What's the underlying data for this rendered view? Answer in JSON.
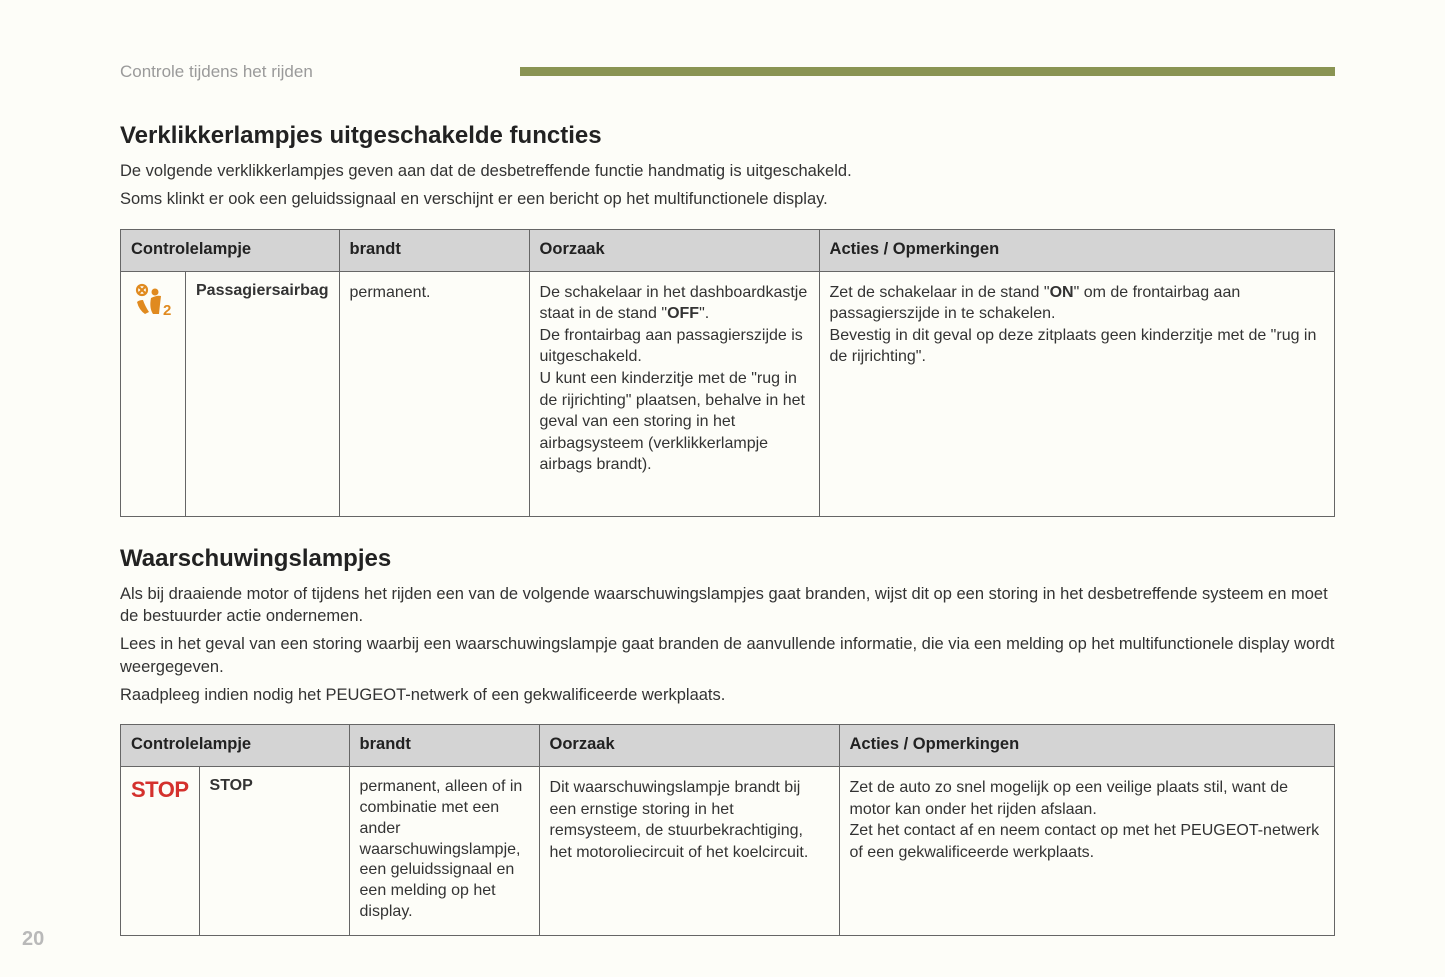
{
  "page": {
    "section_label": "Controle tijdens het rijden",
    "accent_color": "#8a9453",
    "page_number": "20"
  },
  "section1": {
    "heading": "Verklikkerlampjes uitgeschakelde functies",
    "intro_line1": "De volgende verklikkerlampjes geven aan dat de desbetreffende functie handmatig is uitgeschakeld.",
    "intro_line2": "Soms klinkt er ook een geluidssignaal en verschijnt er een bericht op het multifunctionele display.",
    "columns": {
      "c1": "Controlelampje",
      "c2": "brandt",
      "c3": "Oorzaak",
      "c4": "Acties / Opmerkingen"
    },
    "row1": {
      "icon_name": "passenger-airbag-off-icon",
      "icon_color": "#e08a1f",
      "name": "Passagiersairbag",
      "brandt": "permanent.",
      "oorzaak_html": "De schakelaar in het dashboardkastje staat in de stand \"<b>OFF</b>\".<br>De frontairbag aan passagierszijde is uitgeschakeld.<br>U kunt een kinderzitje met de \"rug in de rijrichting\" plaatsen, behalve in het geval van een storing in het airbagsysteem (verklikkerlampje airbags brandt).",
      "acties_html": "Zet de schakelaar in de stand \"<b>ON</b>\" om de frontairbag aan passagierszijde in te schakelen.<br>Bevestig in dit geval op deze zitplaats geen kinderzitje met de \"rug in de rijrichting\"."
    }
  },
  "section2": {
    "heading": "Waarschuwingslampjes",
    "intro_line1": "Als bij draaiende motor of tijdens het rijden een van de volgende waarschuwingslampjes gaat branden, wijst dit op een storing in het desbetreffende systeem en moet de bestuurder actie ondernemen.",
    "intro_line2": "Lees in het geval van een storing waarbij een waarschuwingslampje gaat branden de aanvullende informatie, die via een melding op het multifunctionele display wordt weergegeven.",
    "intro_line3": "Raadpleeg indien nodig het PEUGEOT-netwerk of een gekwalificeerde werkplaats.",
    "columns": {
      "c1": "Controlelampje",
      "c2": "brandt",
      "c3": "Oorzaak",
      "c4": "Acties / Opmerkingen"
    },
    "row1": {
      "icon_text": "STOP",
      "icon_color": "#d4312d",
      "name": "STOP",
      "brandt": "permanent, alleen of in combinatie met een ander waarschuwingslampje, een geluidssignaal en een melding op het display.",
      "oorzaak": "Dit waarschuwingslampje brandt bij een ernstige storing in het remsysteem, de stuurbekrachtiging, het motoroliecircuit of het koelcircuit.",
      "acties": "Zet de auto zo snel mogelijk op een veilige plaats stil, want de motor kan onder het rijden afslaan.\nZet het contact af en neem contact op met het PEUGEOT-netwerk of een gekwalificeerde werkplaats."
    }
  }
}
